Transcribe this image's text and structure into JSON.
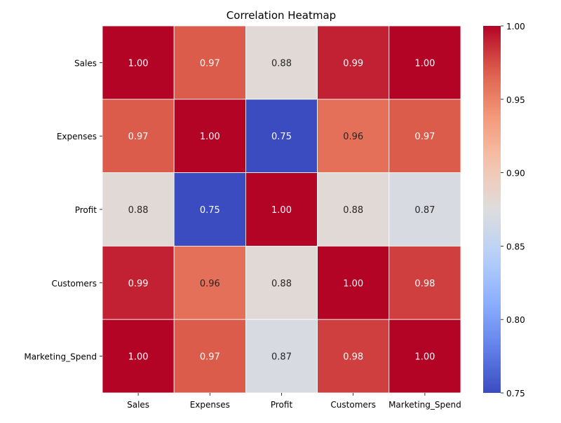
{
  "chart_data": {
    "type": "heatmap",
    "title": "Correlation Heatmap",
    "xlabel": "",
    "ylabel": "",
    "rows": [
      "Sales",
      "Expenses",
      "Profit",
      "Customers",
      "Marketing_Spend"
    ],
    "columns": [
      "Sales",
      "Expenses",
      "Profit",
      "Customers",
      "Marketing_Spend"
    ],
    "values": [
      [
        1.0,
        0.97,
        0.88,
        0.99,
        1.0
      ],
      [
        0.97,
        1.0,
        0.75,
        0.96,
        0.97
      ],
      [
        0.88,
        0.75,
        1.0,
        0.88,
        0.87
      ],
      [
        0.99,
        0.96,
        0.88,
        1.0,
        0.98
      ],
      [
        1.0,
        0.97,
        0.87,
        0.98,
        1.0
      ]
    ],
    "value_format": "0.00",
    "colormap": "coolwarm",
    "color_range": [
      0.75,
      1.0
    ],
    "colorbar_ticks": [
      0.75,
      0.8,
      0.85,
      0.9,
      0.95,
      1.0
    ],
    "colorbar_tick_labels": [
      "0.75",
      "0.80",
      "0.85",
      "0.90",
      "0.95",
      "1.00"
    ],
    "cell_border_color": "#ffffff",
    "colors": {
      "annotation_light": "#ffffff",
      "annotation_dark": "#262626",
      "axis_text": "#000000"
    }
  }
}
